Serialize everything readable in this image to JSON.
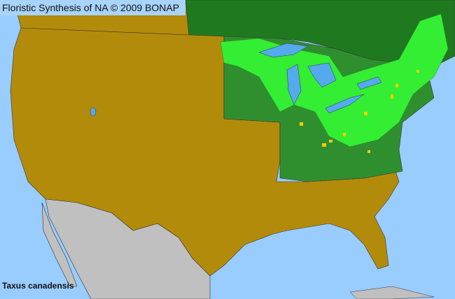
{
  "header": {
    "title": "Floristic Synthesis of NA © 2009 BONAP"
  },
  "species": "Taxus canadensis",
  "colors": {
    "ocean": "#99ccff",
    "absent_state": "#b38b0a",
    "present_state": "#2f8f2f",
    "present_county": "#33ee33",
    "canada_present": "#1f7a1f",
    "mexico": "#c0c0c0",
    "rare_county": "#ffcc00",
    "lakes": "#55aaee"
  }
}
